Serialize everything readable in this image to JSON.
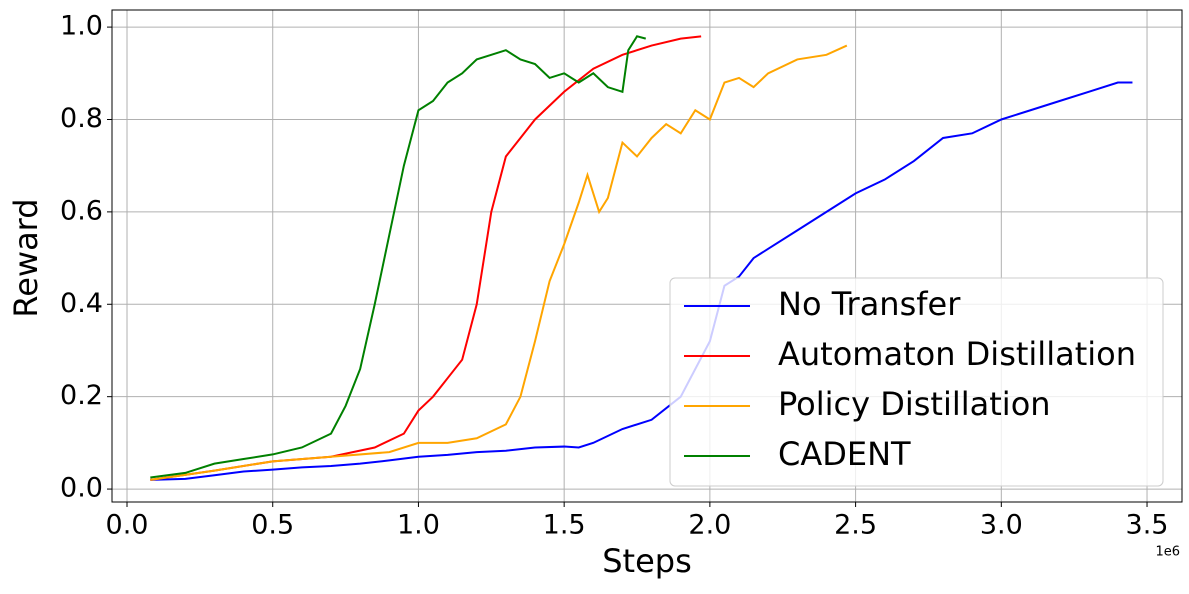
{
  "chart_data": {
    "type": "line",
    "x_label": "Steps",
    "y_label": "Reward",
    "x_offset_label": "1e6",
    "xlim": [
      -0.0515,
      3.62
    ],
    "ylim": [
      -0.028,
      1.037
    ],
    "xticks": [
      {
        "value": 0,
        "label": "0.0"
      },
      0.5,
      {
        "value": 1,
        "label": "1.0"
      },
      1.5,
      {
        "value": 2,
        "label": "2.0"
      },
      2.5,
      {
        "value": 3,
        "label": "3.0"
      },
      3.5
    ],
    "yticks": [
      {
        "value": 0,
        "label": "0.0"
      },
      0.2,
      0.4,
      0.6,
      0.8,
      {
        "value": 1,
        "label": "1.0"
      }
    ],
    "grid": true,
    "legend": "lower right",
    "series": [
      {
        "name": "No Transfer",
        "color": "#0000ff",
        "x": [
          0.08,
          0.2,
          0.3,
          0.4,
          0.5,
          0.6,
          0.7,
          0.8,
          0.9,
          1.0,
          1.1,
          1.2,
          1.3,
          1.4,
          1.5,
          1.55,
          1.6,
          1.7,
          1.8,
          1.9,
          2.0,
          2.05,
          2.1,
          2.15,
          2.2,
          2.3,
          2.4,
          2.5,
          2.6,
          2.7,
          2.8,
          2.9,
          3.0,
          3.1,
          3.2,
          3.3,
          3.4,
          3.45
        ],
        "values": [
          0.02,
          0.022,
          0.03,
          0.038,
          0.042,
          0.047,
          0.05,
          0.055,
          0.062,
          0.07,
          0.074,
          0.08,
          0.083,
          0.09,
          0.092,
          0.09,
          0.1,
          0.13,
          0.15,
          0.2,
          0.32,
          0.44,
          0.46,
          0.5,
          0.52,
          0.56,
          0.6,
          0.64,
          0.67,
          0.71,
          0.76,
          0.77,
          0.8,
          0.82,
          0.84,
          0.86,
          0.88,
          0.88
        ]
      },
      {
        "name": "Automaton Distillation",
        "color": "#ff0000",
        "x": [
          0.08,
          0.3,
          0.5,
          0.7,
          0.85,
          0.95,
          1.0,
          1.05,
          1.1,
          1.15,
          1.2,
          1.25,
          1.3,
          1.35,
          1.4,
          1.5,
          1.6,
          1.7,
          1.8,
          1.9,
          1.97
        ],
        "values": [
          0.02,
          0.04,
          0.06,
          0.07,
          0.09,
          0.12,
          0.17,
          0.2,
          0.24,
          0.28,
          0.4,
          0.6,
          0.72,
          0.76,
          0.8,
          0.86,
          0.91,
          0.94,
          0.96,
          0.975,
          0.98
        ]
      },
      {
        "name": "Policy Distillation",
        "color": "#ffa500",
        "x": [
          0.08,
          0.3,
          0.5,
          0.7,
          0.9,
          1.0,
          1.1,
          1.2,
          1.3,
          1.35,
          1.4,
          1.45,
          1.5,
          1.55,
          1.58,
          1.62,
          1.65,
          1.7,
          1.75,
          1.8,
          1.85,
          1.9,
          1.95,
          2.0,
          2.05,
          2.1,
          2.15,
          2.2,
          2.3,
          2.4,
          2.47
        ],
        "values": [
          0.02,
          0.04,
          0.06,
          0.07,
          0.08,
          0.1,
          0.1,
          0.11,
          0.14,
          0.2,
          0.32,
          0.45,
          0.53,
          0.62,
          0.68,
          0.6,
          0.63,
          0.75,
          0.72,
          0.76,
          0.79,
          0.77,
          0.82,
          0.8,
          0.88,
          0.89,
          0.87,
          0.9,
          0.93,
          0.94,
          0.96
        ]
      },
      {
        "name": "CADENT",
        "color": "#008000",
        "x": [
          0.08,
          0.2,
          0.3,
          0.4,
          0.5,
          0.6,
          0.7,
          0.75,
          0.8,
          0.85,
          0.9,
          0.95,
          1.0,
          1.05,
          1.1,
          1.15,
          1.2,
          1.25,
          1.3,
          1.35,
          1.4,
          1.45,
          1.5,
          1.55,
          1.6,
          1.65,
          1.7,
          1.72,
          1.75,
          1.78
        ],
        "values": [
          0.025,
          0.035,
          0.055,
          0.065,
          0.075,
          0.09,
          0.12,
          0.18,
          0.26,
          0.4,
          0.55,
          0.7,
          0.82,
          0.84,
          0.88,
          0.9,
          0.93,
          0.94,
          0.95,
          0.93,
          0.92,
          0.89,
          0.9,
          0.88,
          0.9,
          0.87,
          0.86,
          0.95,
          0.98,
          0.975
        ]
      }
    ]
  }
}
